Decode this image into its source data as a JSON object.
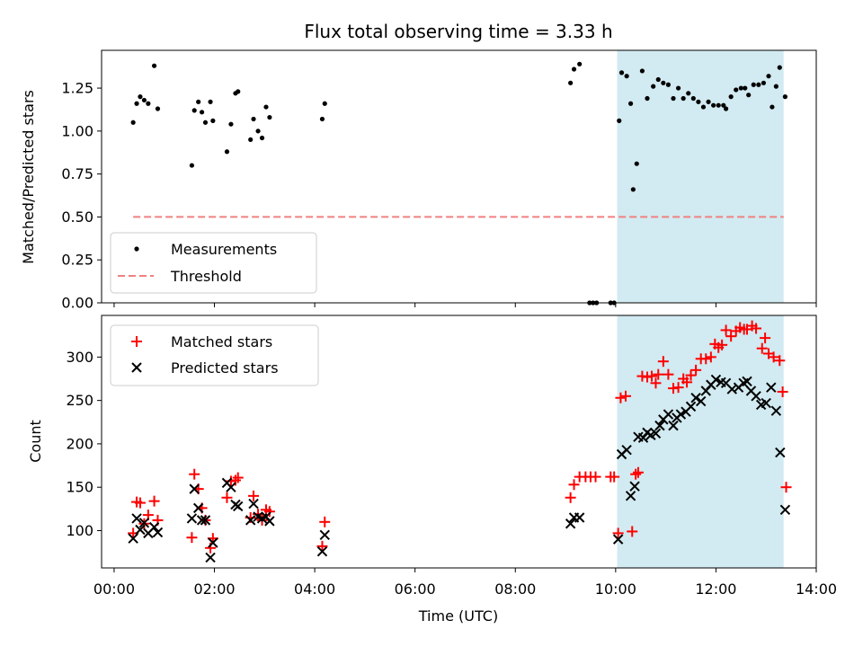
{
  "title": "Flux total observing time = 3.33 h",
  "colors": {
    "measurement": "#000000",
    "threshold": "#f08080",
    "matched": "#ff0000",
    "predicted": "#000000",
    "highlight": "#add8e6"
  },
  "chart_data": [
    {
      "type": "scatter",
      "panel": "top",
      "ylabel": "Matched/Predicted stars",
      "xlim": [
        -0.25,
        14
      ],
      "ylim": [
        0,
        1.47
      ],
      "yticks": [
        0.0,
        0.25,
        0.5,
        0.75,
        1.0,
        1.25
      ],
      "ytick_labels": [
        "0.00",
        "0.25",
        "0.50",
        "0.75",
        "1.00",
        "1.25"
      ],
      "highlight_span": [
        10.03,
        13.35
      ],
      "legend": {
        "placement": "lower-left",
        "entries": [
          "Measurements",
          "Threshold"
        ]
      },
      "threshold": {
        "name": "Threshold",
        "value": 0.5,
        "x_range": [
          0.38,
          13.35
        ]
      },
      "series": [
        {
          "name": "Measurements",
          "points": [
            [
              0.38,
              1.05
            ],
            [
              0.45,
              1.16
            ],
            [
              0.52,
              1.2
            ],
            [
              0.6,
              1.18
            ],
            [
              0.68,
              1.16
            ],
            [
              0.8,
              1.38
            ],
            [
              0.87,
              1.13
            ],
            [
              1.55,
              0.8
            ],
            [
              1.6,
              1.12
            ],
            [
              1.68,
              1.17
            ],
            [
              1.75,
              1.11
            ],
            [
              1.82,
              1.05
            ],
            [
              1.92,
              1.17
            ],
            [
              1.97,
              1.06
            ],
            [
              2.25,
              0.88
            ],
            [
              2.33,
              1.04
            ],
            [
              2.42,
              1.22
            ],
            [
              2.47,
              1.23
            ],
            [
              2.72,
              0.95
            ],
            [
              2.78,
              1.07
            ],
            [
              2.87,
              1.0
            ],
            [
              2.95,
              0.96
            ],
            [
              3.03,
              1.14
            ],
            [
              3.1,
              1.08
            ],
            [
              4.15,
              1.07
            ],
            [
              4.2,
              1.16
            ],
            [
              9.1,
              1.28
            ],
            [
              9.17,
              1.36
            ],
            [
              9.28,
              1.39
            ],
            [
              9.48,
              0.0
            ],
            [
              9.55,
              0.0
            ],
            [
              9.62,
              0.0
            ],
            [
              9.9,
              0.0
            ],
            [
              9.97,
              0.0
            ],
            [
              10.07,
              1.06
            ],
            [
              10.12,
              1.34
            ],
            [
              10.22,
              1.32
            ],
            [
              10.3,
              1.16
            ],
            [
              10.35,
              0.66
            ],
            [
              10.42,
              0.81
            ],
            [
              10.53,
              1.35
            ],
            [
              10.63,
              1.19
            ],
            [
              10.75,
              1.26
            ],
            [
              10.85,
              1.3
            ],
            [
              10.95,
              1.28
            ],
            [
              11.05,
              1.27
            ],
            [
              11.15,
              1.19
            ],
            [
              11.25,
              1.25
            ],
            [
              11.35,
              1.19
            ],
            [
              11.45,
              1.22
            ],
            [
              11.55,
              1.19
            ],
            [
              11.65,
              1.17
            ],
            [
              11.75,
              1.14
            ],
            [
              11.85,
              1.17
            ],
            [
              11.95,
              1.15
            ],
            [
              12.05,
              1.15
            ],
            [
              12.15,
              1.15
            ],
            [
              12.2,
              1.13
            ],
            [
              12.3,
              1.2
            ],
            [
              12.4,
              1.24
            ],
            [
              12.5,
              1.25
            ],
            [
              12.58,
              1.25
            ],
            [
              12.65,
              1.21
            ],
            [
              12.75,
              1.27
            ],
            [
              12.85,
              1.27
            ],
            [
              12.95,
              1.28
            ],
            [
              13.05,
              1.32
            ],
            [
              13.12,
              1.14
            ],
            [
              13.2,
              1.26
            ],
            [
              13.27,
              1.37
            ],
            [
              13.38,
              1.2
            ]
          ]
        }
      ]
    },
    {
      "type": "scatter",
      "panel": "bottom",
      "xlabel": "Time (UTC)",
      "ylabel": "Count",
      "xlim": [
        -0.25,
        14
      ],
      "ylim": [
        57,
        348
      ],
      "xticks": [
        0,
        2,
        4,
        6,
        8,
        10,
        12,
        14
      ],
      "xtick_labels": [
        "00:00",
        "02:00",
        "04:00",
        "06:00",
        "08:00",
        "10:00",
        "12:00",
        "14:00"
      ],
      "yticks": [
        100,
        150,
        200,
        250,
        300
      ],
      "ytick_labels": [
        "100",
        "150",
        "200",
        "250",
        "300"
      ],
      "highlight_span": [
        10.03,
        13.35
      ],
      "legend": {
        "placement": "upper-left",
        "entries": [
          "Matched stars",
          "Predicted stars"
        ]
      },
      "series": [
        {
          "name": "Matched stars",
          "marker": "plus",
          "points": [
            [
              0.38,
              97
            ],
            [
              0.45,
              133
            ],
            [
              0.52,
              132
            ],
            [
              0.6,
              108
            ],
            [
              0.68,
              118
            ],
            [
              0.8,
              134
            ],
            [
              0.87,
              112
            ],
            [
              1.55,
              92
            ],
            [
              1.6,
              165
            ],
            [
              1.68,
              148
            ],
            [
              1.75,
              126
            ],
            [
              1.82,
              112
            ],
            [
              1.92,
              80
            ],
            [
              1.97,
              91
            ],
            [
              2.25,
              138
            ],
            [
              2.33,
              157
            ],
            [
              2.42,
              158
            ],
            [
              2.47,
              161
            ],
            [
              2.72,
              115
            ],
            [
              2.78,
              140
            ],
            [
              2.87,
              119
            ],
            [
              2.95,
              112
            ],
            [
              3.03,
              124
            ],
            [
              3.1,
              122
            ],
            [
              4.15,
              82
            ],
            [
              4.2,
              110
            ],
            [
              9.1,
              138
            ],
            [
              9.17,
              153
            ],
            [
              9.28,
              162
            ],
            [
              9.4,
              162
            ],
            [
              9.5,
              162
            ],
            [
              9.6,
              162
            ],
            [
              9.9,
              162
            ],
            [
              9.97,
              162
            ],
            [
              10.05,
              97
            ],
            [
              10.1,
              253
            ],
            [
              10.2,
              255
            ],
            [
              10.33,
              99
            ],
            [
              10.4,
              165
            ],
            [
              10.45,
              167
            ],
            [
              10.53,
              278
            ],
            [
              10.63,
              277
            ],
            [
              10.72,
              278
            ],
            [
              10.8,
              270
            ],
            [
              10.85,
              280
            ],
            [
              10.95,
              295
            ],
            [
              11.05,
              280
            ],
            [
              11.15,
              264
            ],
            [
              11.25,
              265
            ],
            [
              11.35,
              275
            ],
            [
              11.42,
              271
            ],
            [
              11.5,
              279
            ],
            [
              11.6,
              285
            ],
            [
              11.7,
              298
            ],
            [
              11.8,
              298
            ],
            [
              11.9,
              300
            ],
            [
              11.98,
              315
            ],
            [
              12.05,
              311
            ],
            [
              12.12,
              314
            ],
            [
              12.2,
              331
            ],
            [
              12.3,
              324
            ],
            [
              12.4,
              330
            ],
            [
              12.48,
              334
            ],
            [
              12.56,
              332
            ],
            [
              12.62,
              332
            ],
            [
              12.72,
              336
            ],
            [
              12.8,
              333
            ],
            [
              12.92,
              310
            ],
            [
              12.98,
              322
            ],
            [
              13.05,
              304
            ],
            [
              13.15,
              300
            ],
            [
              13.27,
              296
            ],
            [
              13.33,
              260
            ],
            [
              13.4,
              150
            ]
          ]
        },
        {
          "name": "Predicted stars",
          "marker": "x",
          "points": [
            [
              0.38,
              91
            ],
            [
              0.45,
              114
            ],
            [
              0.52,
              101
            ],
            [
              0.6,
              109
            ],
            [
              0.68,
              97
            ],
            [
              0.8,
              104
            ],
            [
              0.87,
              98
            ],
            [
              1.55,
              114
            ],
            [
              1.6,
              148
            ],
            [
              1.68,
              126
            ],
            [
              1.75,
              112
            ],
            [
              1.82,
              112
            ],
            [
              1.92,
              69
            ],
            [
              1.97,
              86
            ],
            [
              2.25,
              155
            ],
            [
              2.33,
              150
            ],
            [
              2.42,
              130
            ],
            [
              2.47,
              128
            ],
            [
              2.72,
              112
            ],
            [
              2.78,
              131
            ],
            [
              2.87,
              116
            ],
            [
              2.95,
              114
            ],
            [
              3.03,
              116
            ],
            [
              3.1,
              111
            ],
            [
              4.15,
              76
            ],
            [
              4.2,
              95
            ],
            [
              9.1,
              108
            ],
            [
              9.17,
              115
            ],
            [
              9.28,
              115
            ],
            [
              10.05,
              90
            ],
            [
              10.12,
              188
            ],
            [
              10.22,
              193
            ],
            [
              10.3,
              140
            ],
            [
              10.38,
              151
            ],
            [
              10.45,
              208
            ],
            [
              10.55,
              207
            ],
            [
              10.63,
              213
            ],
            [
              10.7,
              210
            ],
            [
              10.8,
              212
            ],
            [
              10.88,
              221
            ],
            [
              10.95,
              228
            ],
            [
              11.05,
              234
            ],
            [
              11.15,
              221
            ],
            [
              11.22,
              230
            ],
            [
              11.3,
              234
            ],
            [
              11.4,
              237
            ],
            [
              11.5,
              243
            ],
            [
              11.6,
              253
            ],
            [
              11.7,
              249
            ],
            [
              11.8,
              261
            ],
            [
              11.9,
              268
            ],
            [
              12.0,
              274
            ],
            [
              12.1,
              271
            ],
            [
              12.2,
              270
            ],
            [
              12.32,
              263
            ],
            [
              12.45,
              265
            ],
            [
              12.55,
              270
            ],
            [
              12.62,
              272
            ],
            [
              12.7,
              261
            ],
            [
              12.8,
              255
            ],
            [
              12.9,
              245
            ],
            [
              13.0,
              247
            ],
            [
              13.1,
              265
            ],
            [
              13.2,
              238
            ],
            [
              13.28,
              190
            ],
            [
              13.38,
              124
            ]
          ]
        }
      ]
    }
  ]
}
